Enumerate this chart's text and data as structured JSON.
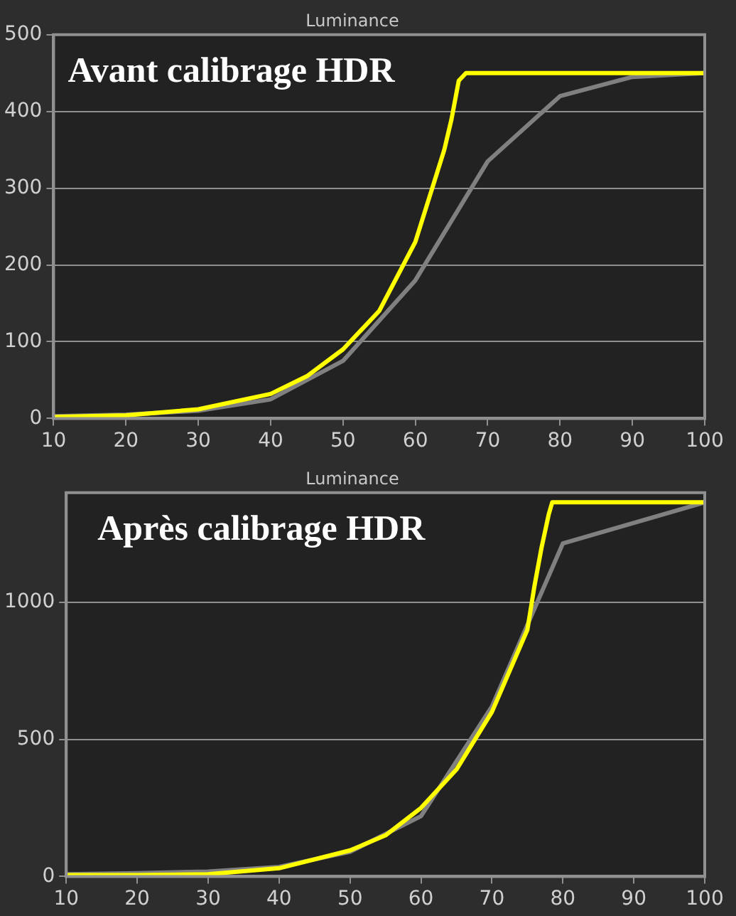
{
  "chart_data": [
    {
      "type": "line",
      "title": "Luminance",
      "annotations": [
        "Avant calibrage HDR"
      ],
      "xlim": [
        10,
        100
      ],
      "xticks": [
        10,
        20,
        30,
        40,
        50,
        60,
        70,
        80,
        90,
        100
      ],
      "ylim": [
        0,
        500
      ],
      "yticks": [
        0,
        100,
        200,
        300,
        400,
        500
      ],
      "grid": "y",
      "legend": false,
      "marker": "none",
      "line_style": "solid",
      "series": [
        {
          "color": "#ffff00",
          "x": [
            10,
            20,
            30,
            40,
            45,
            50,
            55,
            60,
            62,
            64,
            65,
            66,
            67,
            100
          ],
          "values": [
            2,
            4,
            12,
            32,
            55,
            90,
            140,
            230,
            290,
            350,
            390,
            440,
            450,
            450
          ]
        },
        {
          "color": "#808080",
          "x": [
            10,
            20,
            30,
            40,
            50,
            60,
            70,
            80,
            90,
            100
          ],
          "values": [
            3,
            5,
            10,
            25,
            75,
            180,
            335,
            420,
            445,
            450
          ]
        }
      ]
    },
    {
      "type": "line",
      "title": "Luminance",
      "annotations": [
        "Après calibrage HDR"
      ],
      "xlim": [
        10,
        100
      ],
      "xticks": [
        10,
        20,
        30,
        40,
        50,
        60,
        70,
        80,
        90,
        100
      ],
      "ylim": [
        0,
        1400
      ],
      "yticks": [
        0,
        500,
        1000
      ],
      "grid": "y",
      "legend": false,
      "marker": "none",
      "line_style": "solid",
      "series": [
        {
          "color": "#ffff00",
          "x": [
            10,
            20,
            30,
            40,
            50,
            55,
            60,
            65,
            70,
            75,
            76,
            77,
            78,
            78.5,
            100
          ],
          "values": [
            5,
            5,
            8,
            30,
            95,
            150,
            250,
            390,
            600,
            900,
            1060,
            1200,
            1320,
            1365,
            1365
          ]
        },
        {
          "color": "#808080",
          "x": [
            10,
            20,
            30,
            40,
            50,
            60,
            70,
            80,
            100
          ],
          "values": [
            8,
            12,
            18,
            35,
            90,
            220,
            620,
            1215,
            1365
          ]
        }
      ]
    }
  ]
}
